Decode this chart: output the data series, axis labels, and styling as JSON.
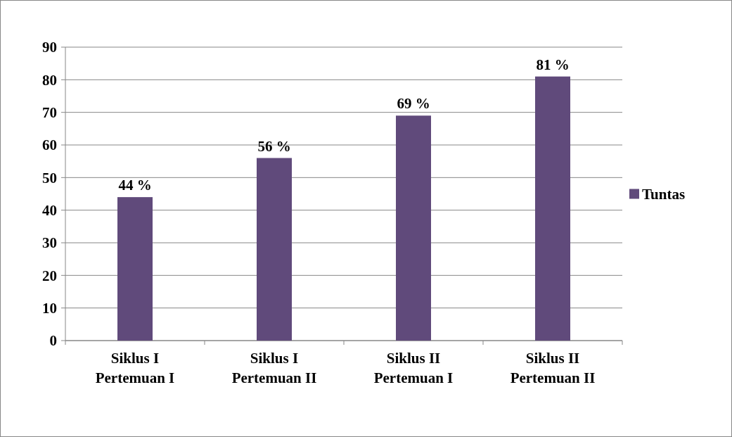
{
  "chart_data": {
    "type": "bar",
    "categories": [
      "Siklus I\nPertemuan I",
      "Siklus I\nPertemuan II",
      "Siklus II\nPertemuan I",
      "Siklus II\nPertemuan II"
    ],
    "series": [
      {
        "name": "Tuntas",
        "color": "#604a7b",
        "values": [
          44,
          56,
          69,
          81
        ],
        "value_labels": [
          "44 %",
          "56 %",
          "69 %",
          "81 %"
        ]
      }
    ],
    "ylim": [
      0,
      90
    ],
    "yticks": [
      0,
      10,
      20,
      30,
      40,
      50,
      60,
      70,
      80,
      90
    ],
    "grid": "y",
    "legend": "right"
  }
}
